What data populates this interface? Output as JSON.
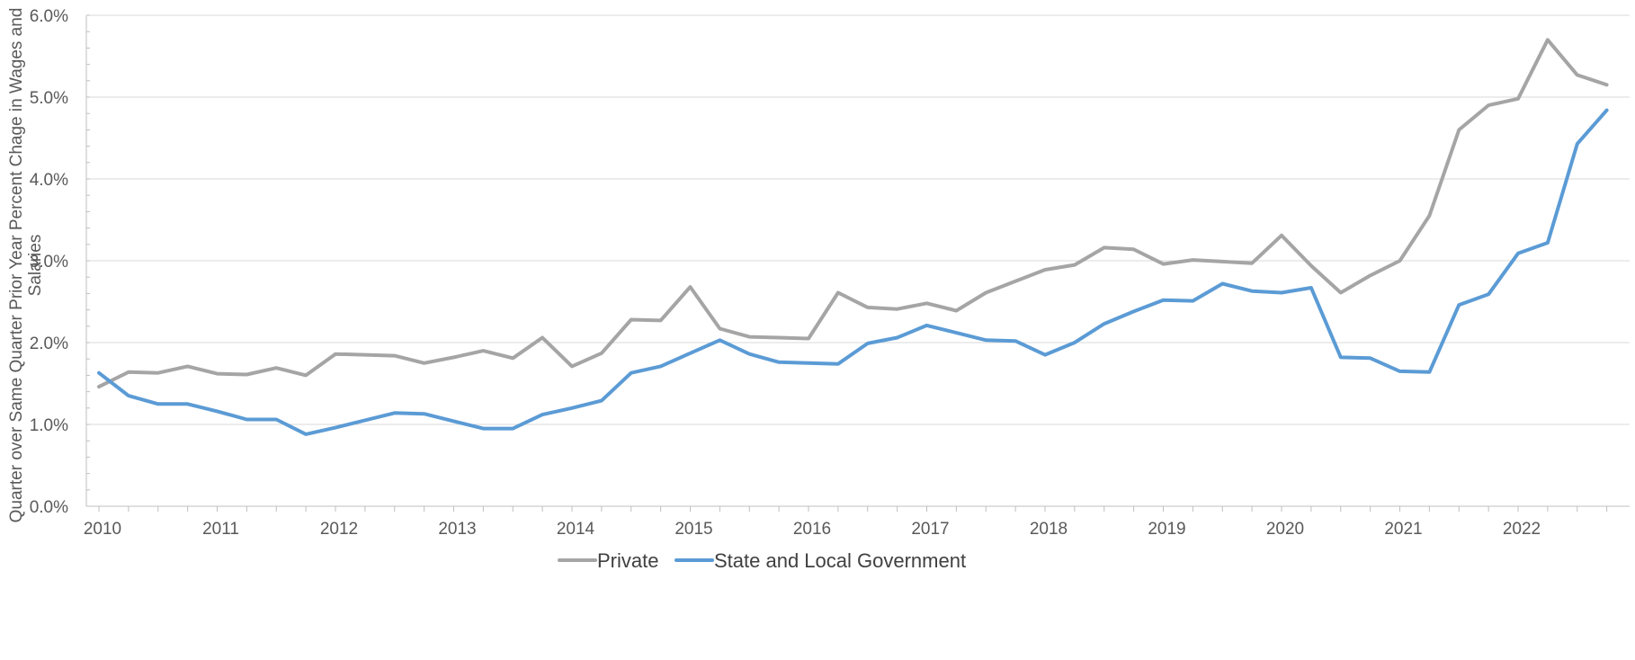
{
  "chart_data": {
    "type": "line",
    "title": "",
    "xlabel": "",
    "ylabel": "Quarter over Same Quarter Prior Year Percent Chage in Wages and Salaries",
    "ylabel_lines": [
      "Quarter over Same Quarter Prior Year Percent Chage in Wages and",
      "Salaries"
    ],
    "ylim": [
      0,
      6
    ],
    "y_ticks": [
      0,
      1,
      2,
      3,
      4,
      5,
      6
    ],
    "y_tick_labels": [
      "0.0%",
      "1.0%",
      "2.0%",
      "3.0%",
      "4.0%",
      "5.0%",
      "6.0%"
    ],
    "x_tick_labels": [
      "2010",
      "2011",
      "2012",
      "2013",
      "2014",
      "2015",
      "2016",
      "2017",
      "2018",
      "2019",
      "2020",
      "2021",
      "2022"
    ],
    "x_start_year": 2010,
    "quarters_per_year": 4,
    "grid": true,
    "legend_position": "bottom",
    "series": [
      {
        "name": "Private",
        "color": "#a5a5a5",
        "values": [
          1.46,
          1.64,
          1.63,
          1.71,
          1.62,
          1.61,
          1.69,
          1.6,
          1.86,
          1.85,
          1.84,
          1.75,
          1.82,
          1.9,
          1.81,
          2.06,
          1.71,
          1.87,
          2.28,
          2.27,
          2.68,
          2.17,
          2.07,
          2.06,
          2.05,
          2.61,
          2.43,
          2.41,
          2.48,
          2.39,
          2.61,
          2.75,
          2.89,
          2.95,
          3.16,
          3.14,
          2.96,
          3.01,
          2.99,
          2.97,
          3.31,
          2.94,
          2.61,
          2.82,
          3.0,
          3.55,
          4.6,
          4.9,
          4.98,
          5.7,
          5.27,
          5.15
        ]
      },
      {
        "name": "State and Local Government",
        "color": "#5b9bd5",
        "values": [
          1.63,
          1.35,
          1.25,
          1.25,
          1.16,
          1.06,
          1.06,
          0.88,
          0.96,
          1.05,
          1.14,
          1.13,
          1.04,
          0.95,
          0.95,
          1.12,
          1.2,
          1.29,
          1.63,
          1.71,
          1.87,
          2.03,
          1.86,
          1.76,
          1.75,
          1.74,
          1.99,
          2.06,
          2.21,
          2.12,
          2.03,
          2.02,
          1.85,
          2.0,
          2.23,
          2.38,
          2.52,
          2.51,
          2.72,
          2.63,
          2.61,
          2.67,
          1.82,
          1.81,
          1.65,
          1.64,
          2.46,
          2.59,
          3.09,
          3.22,
          4.43,
          4.84
        ]
      }
    ]
  }
}
